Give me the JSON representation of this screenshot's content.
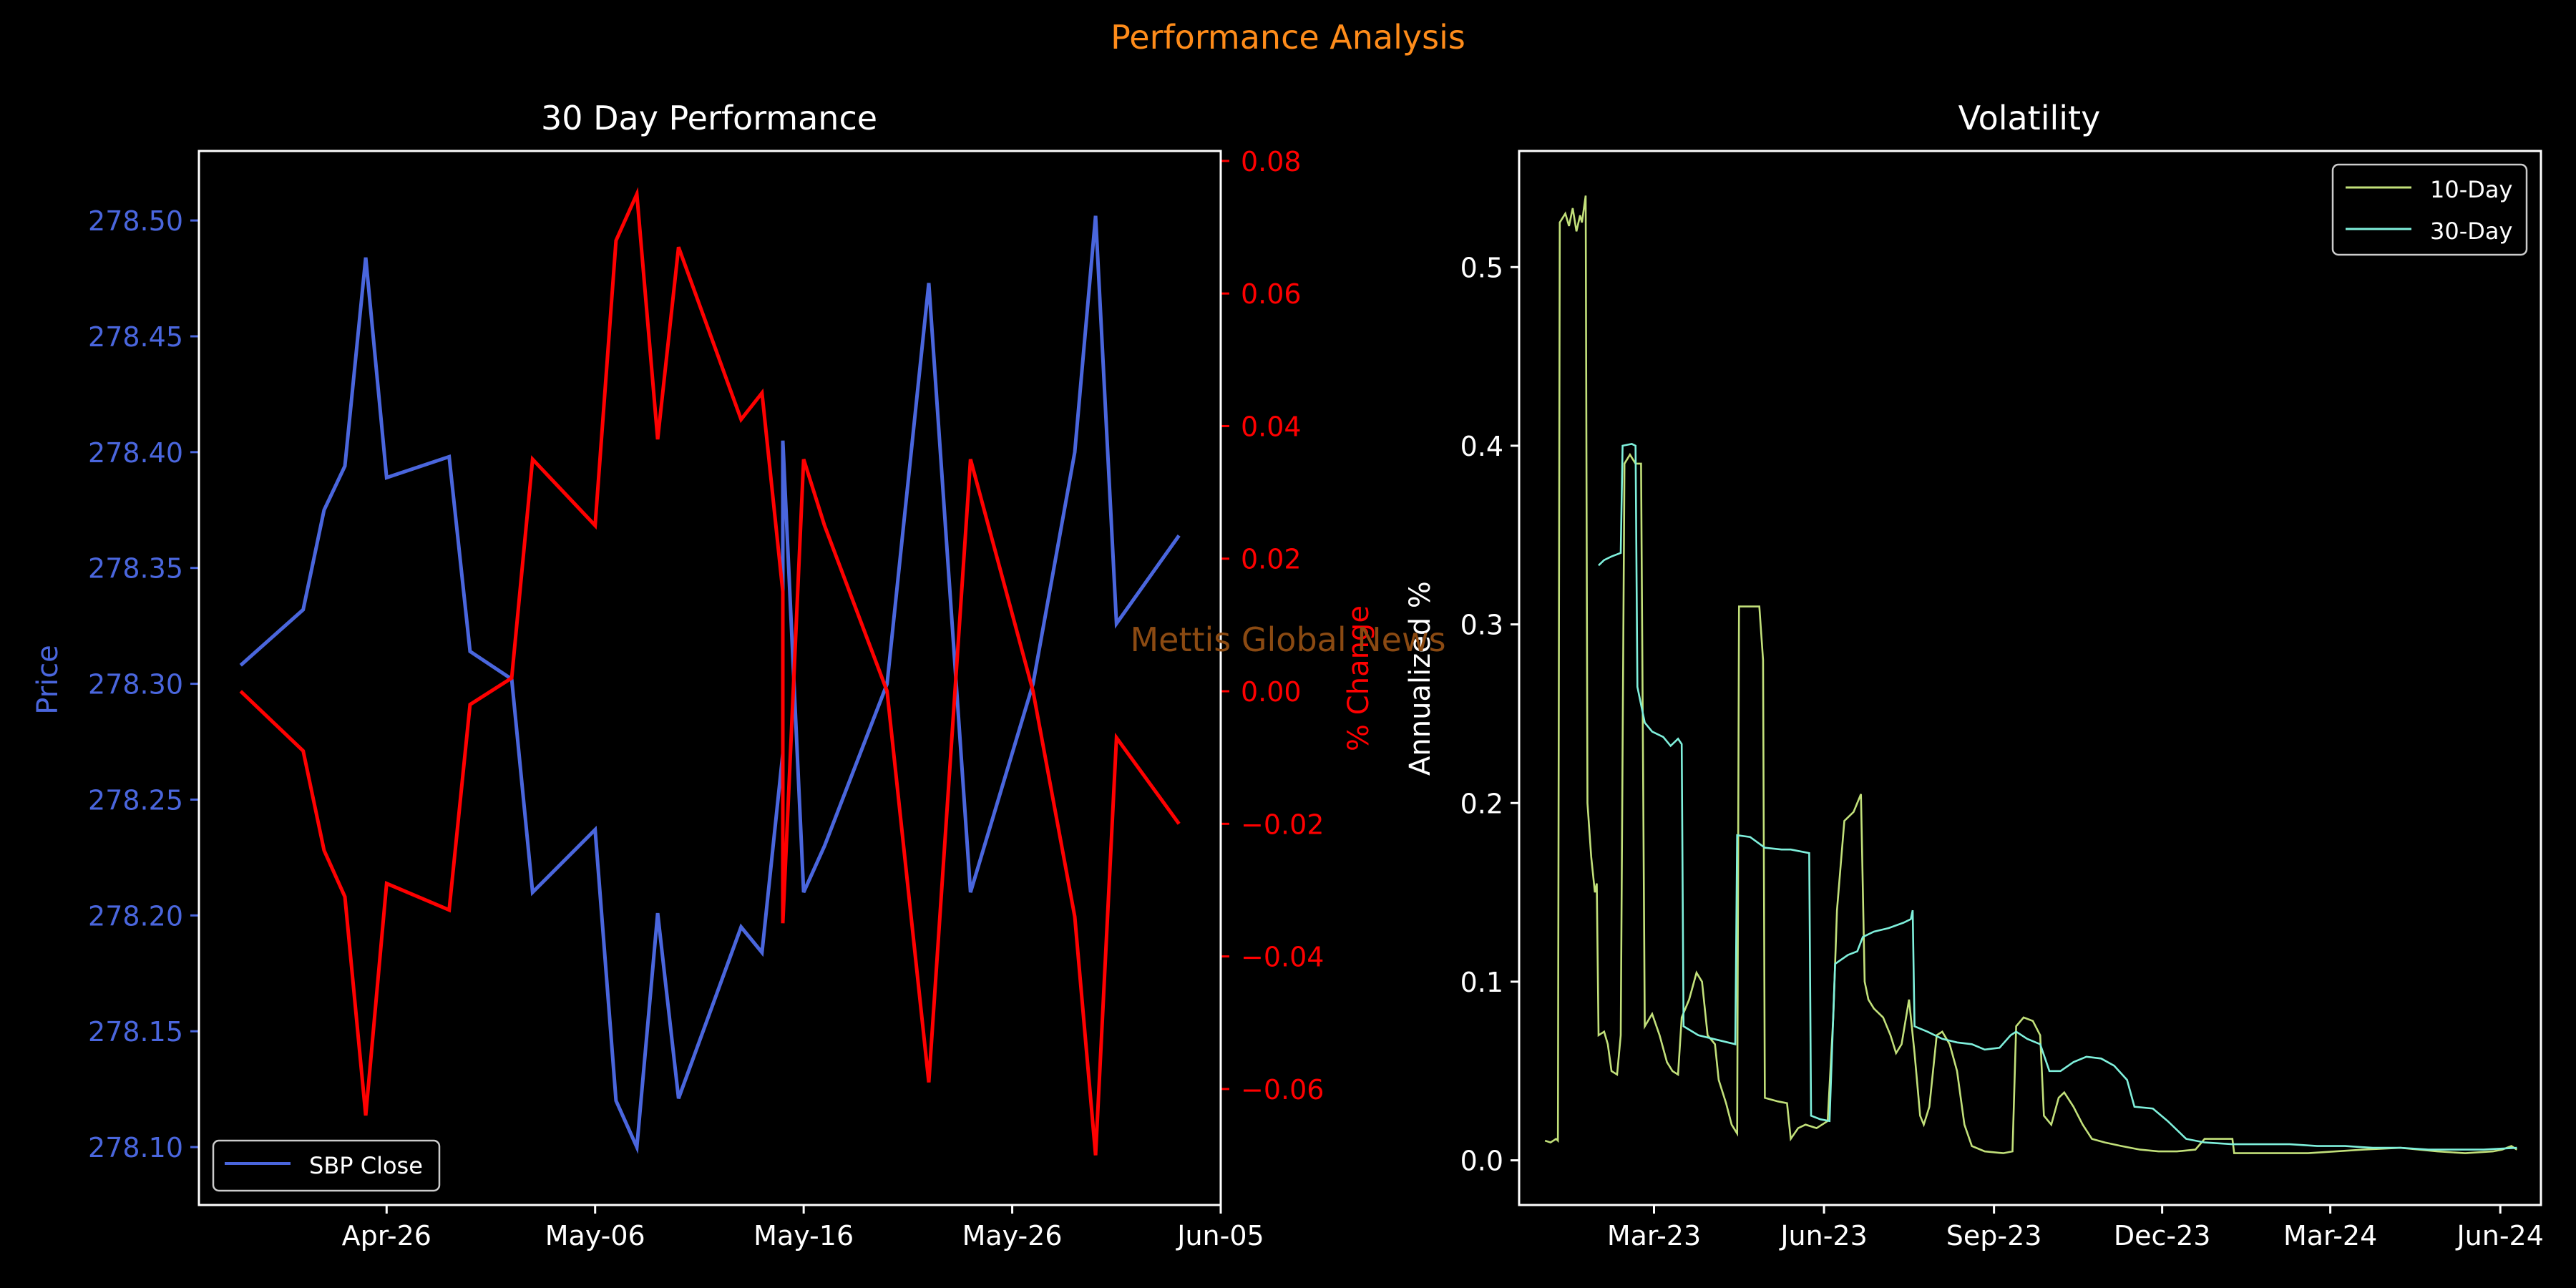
{
  "figure": {
    "title": "Performance Analysis",
    "watermark": "Mettis Global News",
    "colors": {
      "background": "#000000",
      "title": "#ff8c1a",
      "watermark": "#8b4a12",
      "price": "#4a66dd",
      "pct_change": "#ff0000",
      "vol10": "#c2e07a",
      "vol30": "#7ff0dc",
      "axis": "#ffffff"
    }
  },
  "chart_data": [
    {
      "type": "line",
      "title": "30 Day Performance",
      "xlabel": "",
      "ylabel": "Price",
      "ylabel_right": "% Change",
      "x_ticks": [
        "Apr-26",
        "May-06",
        "May-16",
        "May-26",
        "Jun-05"
      ],
      "xlim": [
        "2024-04-17",
        "2024-06-05"
      ],
      "ylim": [
        278.075,
        278.53
      ],
      "y_ticks": [
        "278.10",
        "278.15",
        "278.20",
        "278.25",
        "278.30",
        "278.35",
        "278.40",
        "278.45",
        "278.50"
      ],
      "ylim_right": [
        -0.0775,
        0.0815
      ],
      "y_ticks_right": [
        "0.08",
        "0.06",
        "0.04",
        "0.02",
        "0.00",
        "−0.02",
        "−0.04",
        "−0.06"
      ],
      "legend": {
        "position": "lower-left",
        "entries": [
          "SBP Close"
        ]
      },
      "x": [
        "2024-04-19",
        "2024-04-22",
        "2024-04-23",
        "2024-04-24",
        "2024-04-25",
        "2024-04-26",
        "2024-04-29",
        "2024-04-30",
        "2024-05-02",
        "2024-05-03",
        "2024-05-06",
        "2024-05-07",
        "2024-05-08",
        "2024-05-09",
        "2024-05-10",
        "2024-05-13",
        "2024-05-14",
        "2024-05-15",
        "2024-05-15",
        "2024-05-16",
        "2024-05-17",
        "2024-05-20",
        "2024-05-22",
        "2024-05-24",
        "2024-05-27",
        "2024-05-29",
        "2024-05-30",
        "2024-05-31",
        "2024-06-03"
      ],
      "series": [
        {
          "name": "SBP Close",
          "axis": "left",
          "values": [
            278.308,
            278.332,
            278.375,
            278.394,
            278.484,
            278.389,
            278.398,
            278.314,
            278.302,
            278.21,
            278.237,
            278.12,
            278.1,
            278.201,
            278.121,
            278.195,
            278.184,
            278.27,
            278.405,
            278.21,
            278.23,
            278.3,
            278.473,
            278.21,
            278.3,
            278.4,
            278.502,
            278.326,
            278.364
          ]
        },
        {
          "name": "% Change",
          "axis": "right",
          "values": [
            0.0,
            -0.009,
            -0.024,
            -0.031,
            -0.064,
            -0.029,
            -0.033,
            -0.002,
            0.002,
            0.035,
            0.025,
            0.068,
            0.075,
            0.038,
            0.067,
            0.041,
            0.045,
            0.015,
            -0.035,
            0.035,
            0.025,
            0.0,
            -0.059,
            0.035,
            0.0,
            -0.034,
            -0.07,
            -0.007,
            -0.02
          ]
        }
      ]
    },
    {
      "type": "line",
      "title": "Volatility",
      "xlabel": "",
      "ylabel": "Annualized %",
      "x_ticks": [
        "Mar-23",
        "Jun-23",
        "Sep-23",
        "Dec-23",
        "Mar-24",
        "Jun-24"
      ],
      "xlim": [
        "2022-12-18",
        "2024-06-23"
      ],
      "ylim": [
        -0.025,
        0.565
      ],
      "y_ticks": [
        "0.0",
        "0.1",
        "0.2",
        "0.3",
        "0.4",
        "0.5"
      ],
      "legend": {
        "position": "top-right",
        "entries": [
          "10-Day",
          "30-Day"
        ]
      },
      "series": [
        {
          "name": "10-Day",
          "points": [
            [
              "2023-01-01",
              0.011
            ],
            [
              "2023-01-04",
              0.01
            ],
            [
              "2023-01-07",
              0.012
            ],
            [
              "2023-01-08",
              0.011
            ],
            [
              "2023-01-09",
              0.525
            ],
            [
              "2023-01-12",
              0.53
            ],
            [
              "2023-01-14",
              0.523
            ],
            [
              "2023-01-16",
              0.533
            ],
            [
              "2023-01-18",
              0.52
            ],
            [
              "2023-01-20",
              0.529
            ],
            [
              "2023-01-21",
              0.525
            ],
            [
              "2023-01-23",
              0.54
            ],
            [
              "2023-01-24",
              0.2
            ],
            [
              "2023-01-26",
              0.17
            ],
            [
              "2023-01-28",
              0.15
            ],
            [
              "2023-01-29",
              0.155
            ],
            [
              "2023-01-30",
              0.07
            ],
            [
              "2023-02-02",
              0.072
            ],
            [
              "2023-02-04",
              0.065
            ],
            [
              "2023-02-06",
              0.05
            ],
            [
              "2023-02-09",
              0.048
            ],
            [
              "2023-02-11",
              0.07
            ],
            [
              "2023-02-13",
              0.39
            ],
            [
              "2023-02-16",
              0.395
            ],
            [
              "2023-02-19",
              0.39
            ],
            [
              "2023-02-22",
              0.39
            ],
            [
              "2023-02-24",
              0.075
            ],
            [
              "2023-02-28",
              0.082
            ],
            [
              "2023-03-04",
              0.07
            ],
            [
              "2023-03-08",
              0.055
            ],
            [
              "2023-03-11",
              0.05
            ],
            [
              "2023-03-14",
              0.048
            ],
            [
              "2023-03-16",
              0.08
            ],
            [
              "2023-03-20",
              0.09
            ],
            [
              "2023-03-24",
              0.105
            ],
            [
              "2023-03-27",
              0.1
            ],
            [
              "2023-03-30",
              0.07
            ],
            [
              "2023-04-03",
              0.065
            ],
            [
              "2023-04-05",
              0.045
            ],
            [
              "2023-04-09",
              0.032
            ],
            [
              "2023-04-12",
              0.02
            ],
            [
              "2023-04-15",
              0.015
            ],
            [
              "2023-04-16",
              0.31
            ],
            [
              "2023-04-22",
              0.31
            ],
            [
              "2023-04-27",
              0.31
            ],
            [
              "2023-04-29",
              0.28
            ],
            [
              "2023-04-30",
              0.035
            ],
            [
              "2023-05-07",
              0.033
            ],
            [
              "2023-05-12",
              0.032
            ],
            [
              "2023-05-14",
              0.012
            ],
            [
              "2023-05-18",
              0.018
            ],
            [
              "2023-05-22",
              0.02
            ],
            [
              "2023-05-28",
              0.018
            ],
            [
              "2023-06-03",
              0.022
            ],
            [
              "2023-06-06",
              0.08
            ],
            [
              "2023-06-08",
              0.14
            ],
            [
              "2023-06-12",
              0.19
            ],
            [
              "2023-06-17",
              0.195
            ],
            [
              "2023-06-21",
              0.205
            ],
            [
              "2023-06-23",
              0.1
            ],
            [
              "2023-06-25",
              0.09
            ],
            [
              "2023-06-28",
              0.085
            ],
            [
              "2023-07-03",
              0.08
            ],
            [
              "2023-07-07",
              0.07
            ],
            [
              "2023-07-10",
              0.06
            ],
            [
              "2023-07-13",
              0.065
            ],
            [
              "2023-07-17",
              0.09
            ],
            [
              "2023-07-20",
              0.06
            ],
            [
              "2023-07-23",
              0.025
            ],
            [
              "2023-07-25",
              0.02
            ],
            [
              "2023-07-28",
              0.03
            ],
            [
              "2023-08-01",
              0.07
            ],
            [
              "2023-08-04",
              0.072
            ],
            [
              "2023-08-08",
              0.065
            ],
            [
              "2023-08-12",
              0.05
            ],
            [
              "2023-08-16",
              0.02
            ],
            [
              "2023-08-20",
              0.008
            ],
            [
              "2023-08-27",
              0.005
            ],
            [
              "2023-09-06",
              0.004
            ],
            [
              "2023-09-11",
              0.005
            ],
            [
              "2023-09-13",
              0.075
            ],
            [
              "2023-09-17",
              0.08
            ],
            [
              "2023-09-22",
              0.078
            ],
            [
              "2023-09-26",
              0.07
            ],
            [
              "2023-09-28",
              0.025
            ],
            [
              "2023-10-02",
              0.02
            ],
            [
              "2023-10-06",
              0.035
            ],
            [
              "2023-10-09",
              0.038
            ],
            [
              "2023-10-14",
              0.03
            ],
            [
              "2023-10-19",
              0.02
            ],
            [
              "2023-10-24",
              0.012
            ],
            [
              "2023-10-31",
              0.01
            ],
            [
              "2023-11-09",
              0.008
            ],
            [
              "2023-11-19",
              0.006
            ],
            [
              "2023-11-29",
              0.005
            ],
            [
              "2023-12-09",
              0.005
            ],
            [
              "2023-12-19",
              0.006
            ],
            [
              "2023-12-24",
              0.012
            ],
            [
              "2024-01-08",
              0.012
            ],
            [
              "2024-01-09",
              0.004
            ],
            [
              "2024-01-29",
              0.004
            ],
            [
              "2024-02-18",
              0.004
            ],
            [
              "2024-03-04",
              0.005
            ],
            [
              "2024-03-19",
              0.006
            ],
            [
              "2024-04-08",
              0.007
            ],
            [
              "2024-04-28",
              0.005
            ],
            [
              "2024-05-13",
              0.004
            ],
            [
              "2024-05-28",
              0.005
            ],
            [
              "2024-06-02",
              0.006
            ],
            [
              "2024-06-07",
              0.008
            ],
            [
              "2024-06-10",
              0.006
            ]
          ]
        },
        {
          "name": "30-Day",
          "points": [
            [
              "2023-01-30",
              0.333
            ],
            [
              "2023-02-02",
              0.336
            ],
            [
              "2023-02-06",
              0.338
            ],
            [
              "2023-02-11",
              0.34
            ],
            [
              "2023-02-12",
              0.4
            ],
            [
              "2023-02-17",
              0.401
            ],
            [
              "2023-02-19",
              0.4
            ],
            [
              "2023-02-20",
              0.265
            ],
            [
              "2023-02-24",
              0.245
            ],
            [
              "2023-02-28",
              0.24
            ],
            [
              "2023-03-06",
              0.237
            ],
            [
              "2023-03-10",
              0.232
            ],
            [
              "2023-03-14",
              0.236
            ],
            [
              "2023-03-16",
              0.233
            ],
            [
              "2023-03-17",
              0.075
            ],
            [
              "2023-03-25",
              0.07
            ],
            [
              "2023-04-02",
              0.068
            ],
            [
              "2023-04-06",
              0.067
            ],
            [
              "2023-04-14",
              0.065
            ],
            [
              "2023-04-15",
              0.182
            ],
            [
              "2023-04-22",
              0.181
            ],
            [
              "2023-04-30",
              0.175
            ],
            [
              "2023-05-09",
              0.174
            ],
            [
              "2023-05-14",
              0.174
            ],
            [
              "2023-05-24",
              0.172
            ],
            [
              "2023-05-25",
              0.025
            ],
            [
              "2023-05-30",
              0.023
            ],
            [
              "2023-06-04",
              0.022
            ],
            [
              "2023-06-07",
              0.11
            ],
            [
              "2023-06-14",
              0.115
            ],
            [
              "2023-06-19",
              0.117
            ],
            [
              "2023-06-22",
              0.125
            ],
            [
              "2023-06-28",
              0.128
            ],
            [
              "2023-07-06",
              0.13
            ],
            [
              "2023-07-14",
              0.133
            ],
            [
              "2023-07-18",
              0.135
            ],
            [
              "2023-07-19",
              0.14
            ],
            [
              "2023-07-20",
              0.075
            ],
            [
              "2023-07-27",
              0.072
            ],
            [
              "2023-08-04",
              0.068
            ],
            [
              "2023-08-12",
              0.066
            ],
            [
              "2023-08-20",
              0.065
            ],
            [
              "2023-08-27",
              0.062
            ],
            [
              "2023-09-04",
              0.063
            ],
            [
              "2023-09-10",
              0.07
            ],
            [
              "2023-09-13",
              0.072
            ],
            [
              "2023-09-19",
              0.068
            ],
            [
              "2023-09-26",
              0.065
            ],
            [
              "2023-10-01",
              0.05
            ],
            [
              "2023-10-07",
              0.05
            ],
            [
              "2023-10-14",
              0.055
            ],
            [
              "2023-10-21",
              0.058
            ],
            [
              "2023-10-29",
              0.057
            ],
            [
              "2023-11-05",
              0.053
            ],
            [
              "2023-11-12",
              0.045
            ],
            [
              "2023-11-16",
              0.03
            ],
            [
              "2023-11-26",
              0.029
            ],
            [
              "2023-12-04",
              0.022
            ],
            [
              "2023-12-14",
              0.012
            ],
            [
              "2023-12-24",
              0.01
            ],
            [
              "2024-01-08",
              0.009
            ],
            [
              "2024-02-08",
              0.009
            ],
            [
              "2024-02-23",
              0.008
            ],
            [
              "2024-03-09",
              0.008
            ],
            [
              "2024-03-24",
              0.007
            ],
            [
              "2024-04-08",
              0.007
            ],
            [
              "2024-04-23",
              0.006
            ],
            [
              "2024-05-08",
              0.006
            ],
            [
              "2024-05-23",
              0.006
            ],
            [
              "2024-06-10",
              0.007
            ]
          ]
        }
      ]
    }
  ]
}
